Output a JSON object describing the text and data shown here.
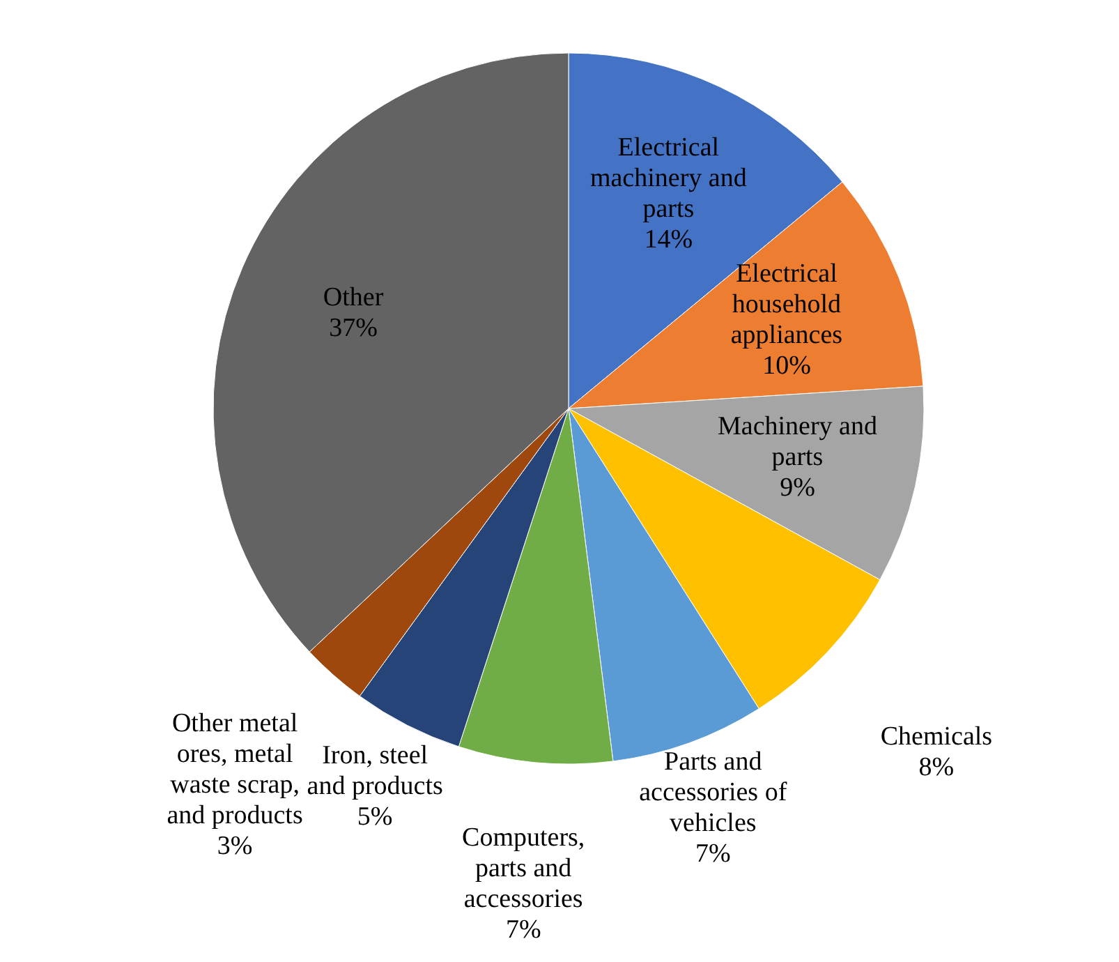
{
  "chart_data": {
    "type": "pie",
    "categories": [
      "Electrical machinery and parts",
      "Electrical household appliances",
      "Machinery and parts",
      "Chemicals",
      "Parts and accessories of vehicles",
      "Computers, parts and accessories",
      "Iron, steel and products",
      "Other metal ores, metal waste scrap, and products",
      "Other"
    ],
    "values": [
      14,
      10,
      9,
      8,
      7,
      7,
      5,
      3,
      37
    ],
    "value_labels": [
      "14%",
      "10%",
      "9%",
      "8%",
      "7%",
      "7%",
      "5%",
      "3%",
      "37%"
    ],
    "colors": [
      "#4472c4",
      "#ed7d31",
      "#a5a5a5",
      "#ffc000",
      "#5b9bd5",
      "#70ad47",
      "#264478",
      "#9e480e",
      "#636363"
    ]
  }
}
